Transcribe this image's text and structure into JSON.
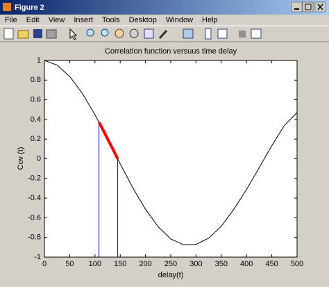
{
  "window": {
    "title": "Figure 2",
    "menu": [
      "File",
      "Edit",
      "View",
      "Insert",
      "Tools",
      "Desktop",
      "Window",
      "Help"
    ]
  },
  "chart_data": {
    "type": "line",
    "title": "Correlation function versuus time delay",
    "xlabel": "delay(t)",
    "ylabel": "Cov (t)",
    "xlim": [
      0,
      500
    ],
    "ylim": [
      -1,
      1
    ],
    "xticks": [
      0,
      50,
      100,
      150,
      200,
      250,
      300,
      350,
      400,
      450,
      500
    ],
    "yticks": [
      -1,
      -0.8,
      -0.6,
      -0.4,
      -0.2,
      0,
      0.2,
      0.4,
      0.6,
      0.8,
      1
    ],
    "series": [
      {
        "color": "#000000",
        "x": [
          0,
          25,
          50,
          75,
          100,
          125,
          150,
          175,
          200,
          225,
          250,
          275,
          300,
          325,
          350,
          375,
          400,
          425,
          450,
          475,
          500
        ],
        "values": [
          1,
          0.953,
          0.838,
          0.665,
          0.449,
          0.203,
          -0.051,
          -0.296,
          -0.513,
          -0.69,
          -0.815,
          -0.874,
          -0.871,
          -0.807,
          -0.687,
          -0.512,
          -0.312,
          -0.09,
          0.133,
          0.34,
          0.47
        ]
      },
      {
        "color": "#ff0000",
        "x": [
          108,
          115,
          125,
          135,
          145
        ],
        "values": [
          0.372,
          0.304,
          0.203,
          0.102,
          0
        ]
      }
    ],
    "vlines": {
      "color": "#0000ff",
      "x": [
        108,
        145
      ],
      "values": [
        0.372,
        0
      ]
    }
  }
}
